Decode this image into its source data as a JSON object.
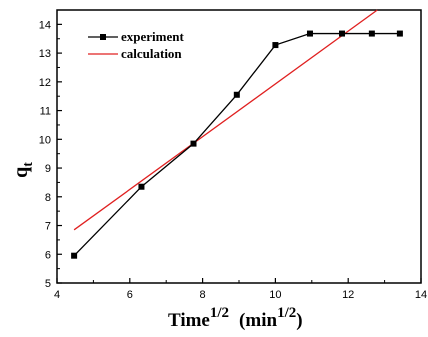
{
  "chart_data": {
    "type": "line",
    "xlabel": "Time",
    "xlabel_sup": "1/2",
    "xlabel_unit": "min",
    "xlabel_unit_sup": "1/2",
    "ylabel": "q",
    "ylabel_sub": "t",
    "xlim": [
      4,
      14
    ],
    "ylim": [
      5,
      14.5
    ],
    "xticks": [
      4,
      6,
      8,
      10,
      12,
      14
    ],
    "yticks": [
      5,
      6,
      7,
      8,
      9,
      10,
      11,
      12,
      13,
      14
    ],
    "xtick_labels": [
      "4",
      "6",
      "8",
      "10",
      "12",
      "14"
    ],
    "ytick_labels": [
      "5",
      "6",
      "7",
      "8",
      "9",
      "10",
      "11",
      "12",
      "13",
      "14"
    ],
    "legend_position": "top-left",
    "series": [
      {
        "name": "experiment",
        "style": "line+square-markers",
        "color": "#000000",
        "x": [
          4.47,
          6.32,
          7.75,
          8.94,
          10.0,
          10.95,
          11.83,
          12.65,
          13.42
        ],
        "y": [
          5.95,
          8.35,
          9.85,
          11.55,
          13.28,
          13.68,
          13.68,
          13.68,
          13.68
        ]
      },
      {
        "name": "calculation",
        "style": "line",
        "color": "#e02020",
        "x": [
          4.47,
          12.8
        ],
        "y": [
          6.85,
          14.5
        ]
      }
    ]
  }
}
